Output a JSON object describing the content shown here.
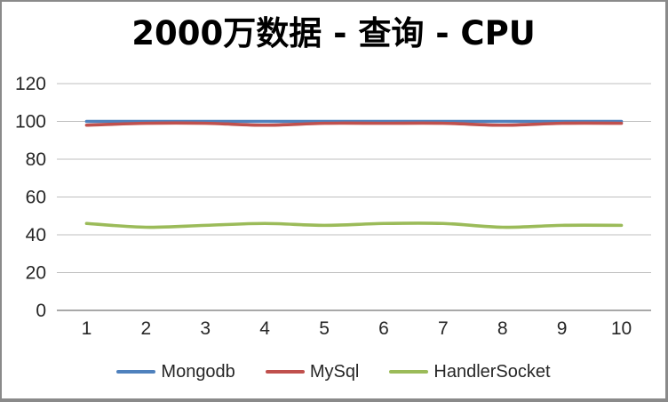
{
  "chart_data": {
    "type": "line",
    "title": "2000万数据 - 查询 - CPU",
    "categories": [
      "1",
      "2",
      "3",
      "4",
      "5",
      "6",
      "7",
      "8",
      "9",
      "10"
    ],
    "series": [
      {
        "name": "Mongodb",
        "color": "#4F81BD",
        "values": [
          100,
          100,
          100,
          100,
          100,
          100,
          100,
          100,
          100,
          100
        ]
      },
      {
        "name": "MySql",
        "color": "#C0504D",
        "values": [
          98,
          99,
          99,
          98,
          99,
          99,
          99,
          98,
          99,
          99
        ]
      },
      {
        "name": "HandlerSocket",
        "color": "#9BBB59",
        "values": [
          46,
          44,
          45,
          46,
          45,
          46,
          46,
          44,
          45,
          45
        ]
      }
    ],
    "xlabel": "",
    "ylabel": "",
    "ylim": [
      0,
      120
    ],
    "yticks": [
      0,
      20,
      40,
      60,
      80,
      100,
      120
    ],
    "grid": true,
    "legend_position": "bottom",
    "line_smoothing": true
  },
  "style": {
    "background": "#FFFFFF",
    "frame_border_color": "#8A8A8A",
    "grid_color": "#BFBFBF",
    "axis_color": "#8C8C8C",
    "tick_text_color": "#262626",
    "title_color": "#000000"
  }
}
